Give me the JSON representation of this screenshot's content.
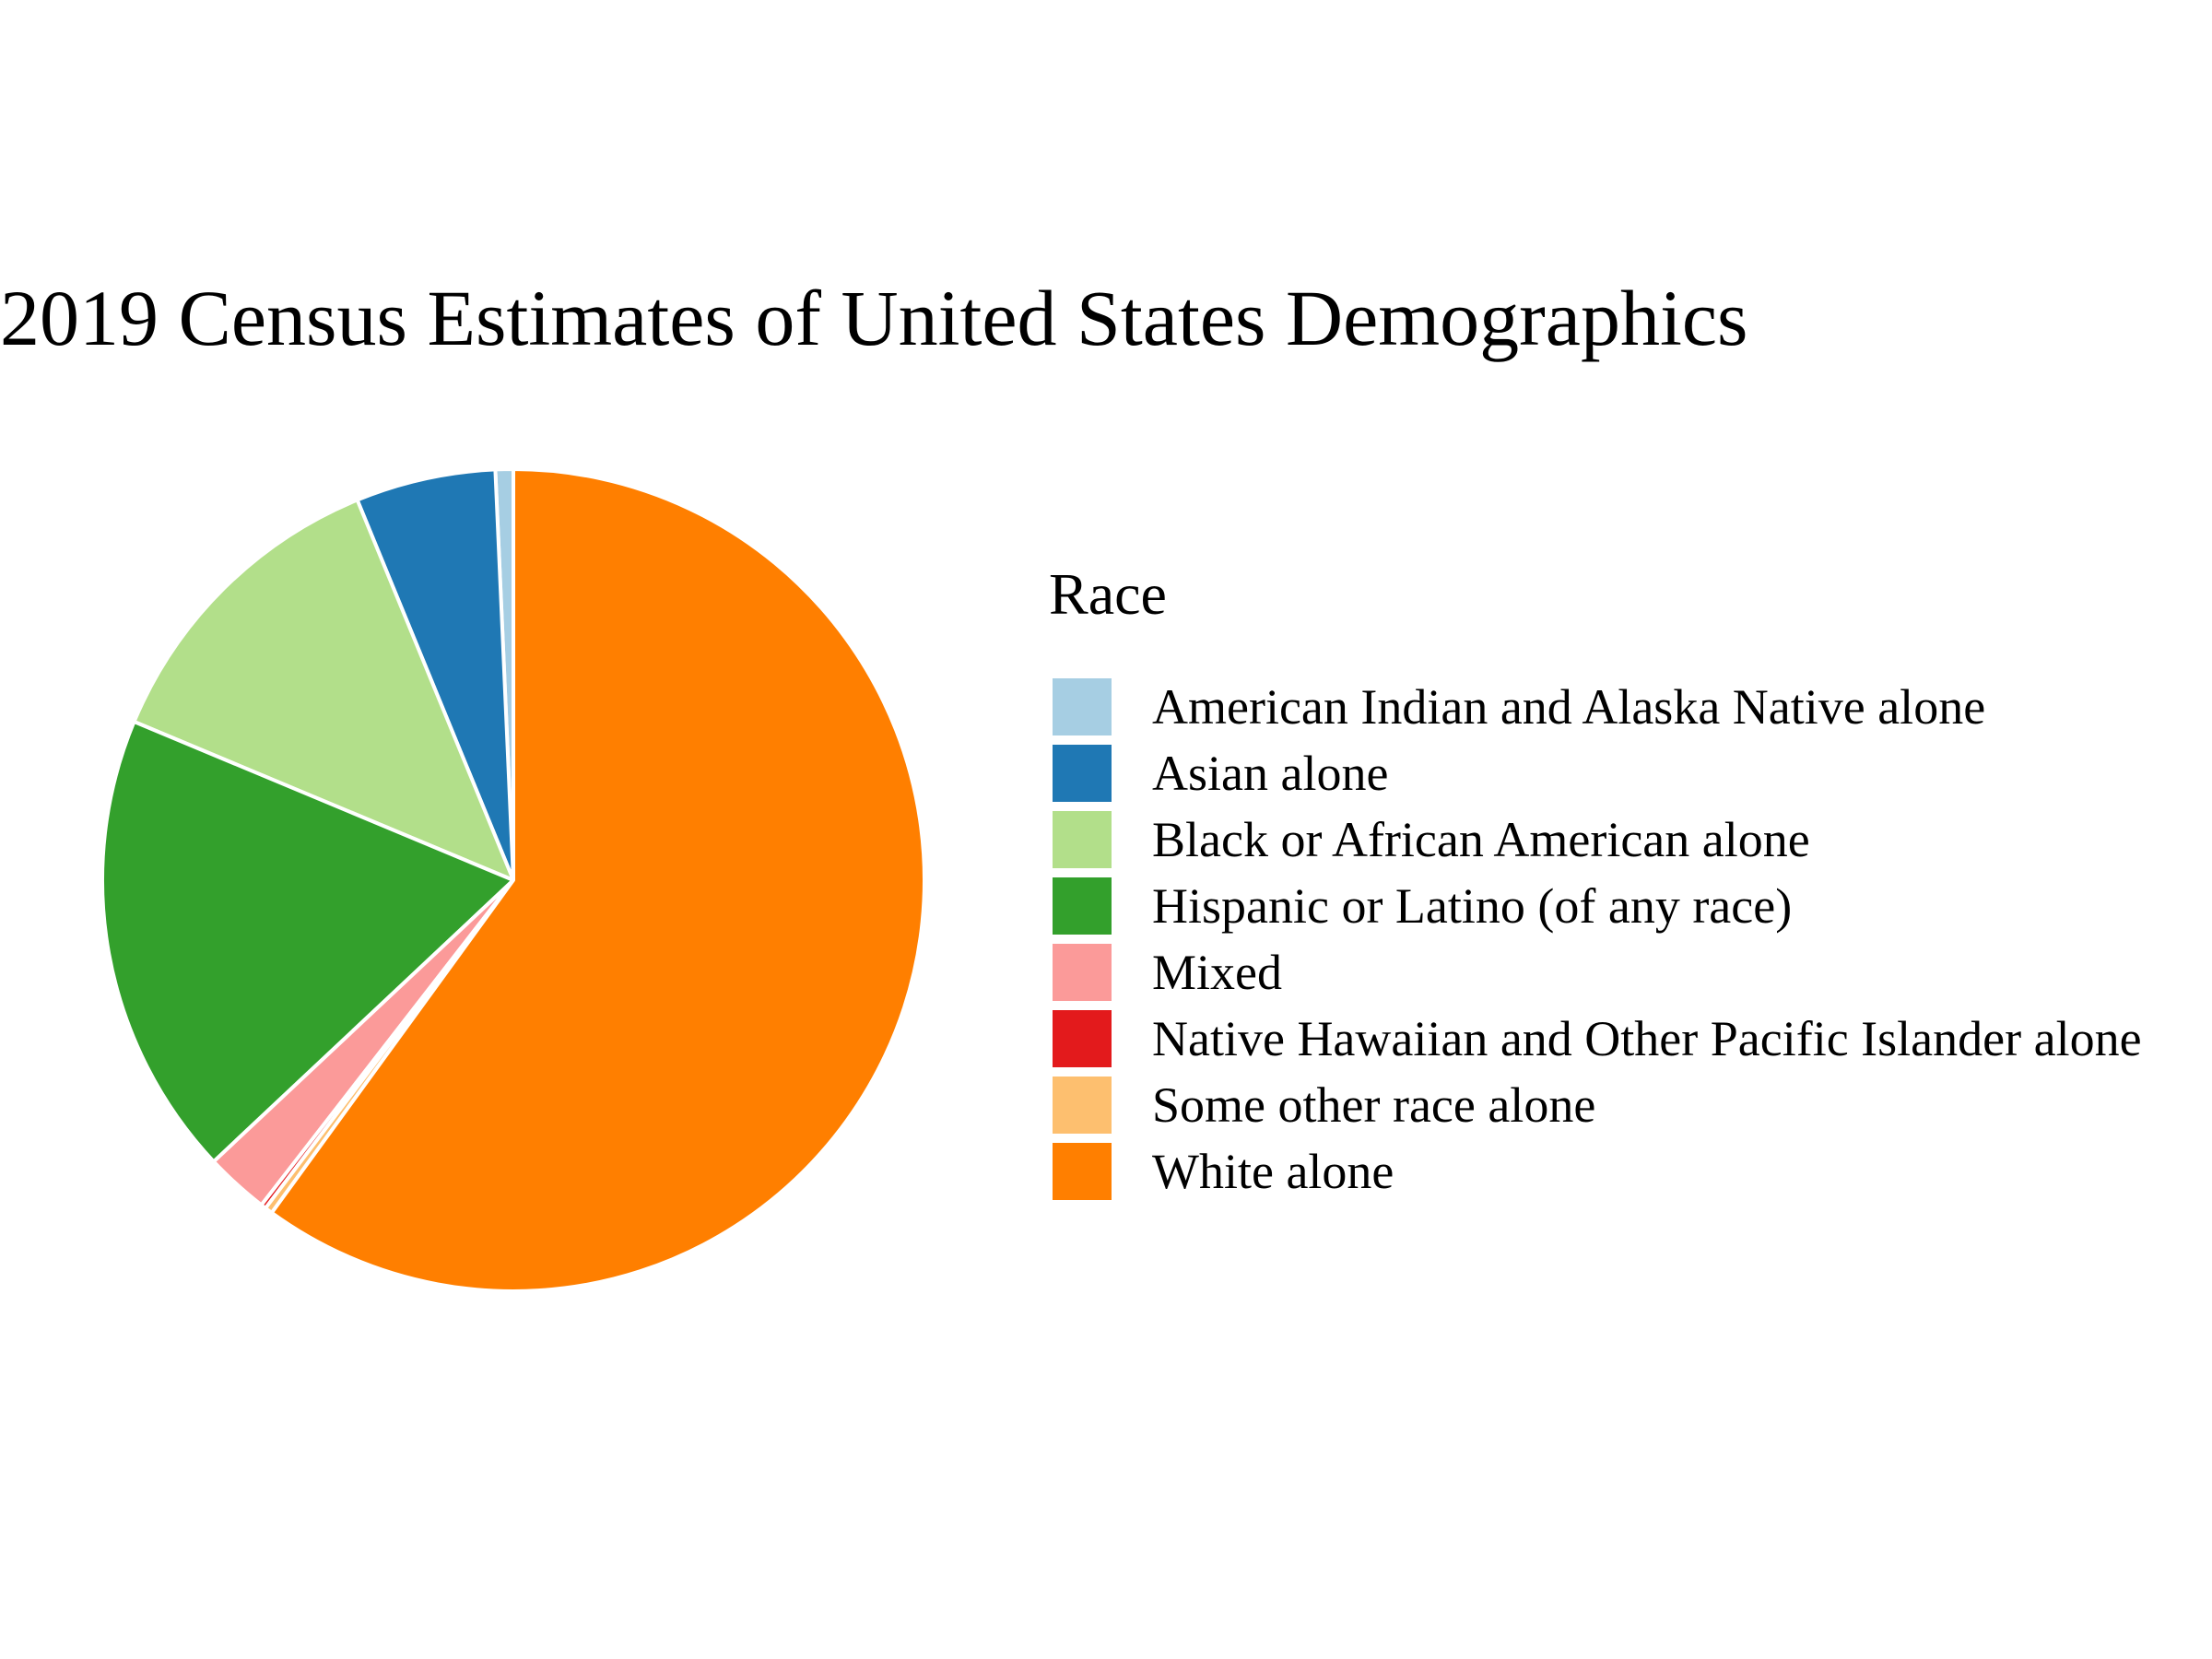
{
  "title": "2019 Census Estimates of United States Demographics",
  "legend": {
    "title": "Race",
    "items": [
      {
        "label": "American Indian and Alaska Native alone",
        "color": "#a6cee3"
      },
      {
        "label": "Asian alone",
        "color": "#1f78b4"
      },
      {
        "label": "Black or African American alone",
        "color": "#b2df8a"
      },
      {
        "label": "Hispanic or Latino (of any race)",
        "color": "#33a02c"
      },
      {
        "label": "Mixed",
        "color": "#fb9a99"
      },
      {
        "label": "Native Hawaiian and Other Pacific Islander alone",
        "color": "#e31a1c"
      },
      {
        "label": "Some other race alone",
        "color": "#fdbf6f"
      },
      {
        "label": "White alone",
        "color": "#ff7f00"
      }
    ]
  },
  "chart_data": {
    "type": "pie",
    "title": "2019 Census Estimates of United States Demographics",
    "legend_title": "Race",
    "legend_position": "right",
    "direction": "counterclockwise from 12 o'clock",
    "unit": "percent (estimated)",
    "categories": [
      "American Indian and Alaska Native alone",
      "Asian alone",
      "Black or African American alone",
      "Hispanic or Latino (of any race)",
      "Mixed",
      "Native Hawaiian and Other Pacific Islander alone",
      "Some other race alone",
      "White alone"
    ],
    "values": [
      0.7,
      5.5,
      12.5,
      18.3,
      2.5,
      0.2,
      0.3,
      60.0
    ],
    "colors": [
      "#a6cee3",
      "#1f78b4",
      "#b2df8a",
      "#33a02c",
      "#fb9a99",
      "#e31a1c",
      "#fdbf6f",
      "#ff7f00"
    ]
  }
}
